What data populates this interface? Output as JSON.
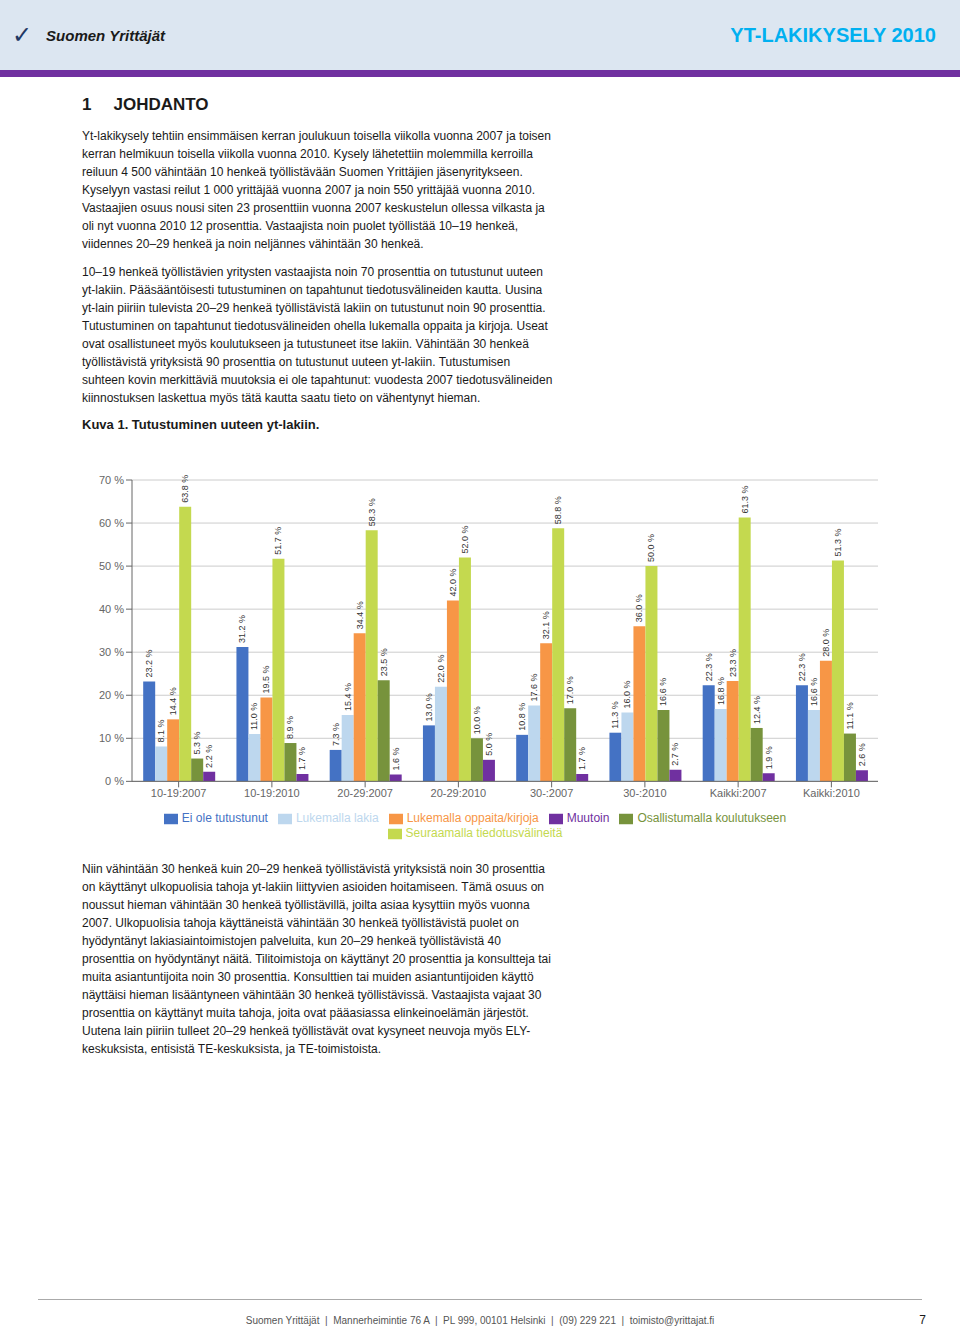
{
  "chart_data": {
    "type": "bar",
    "title": "Kuva 1. Tutustuminen uuteen yt-lakiin.",
    "categories": [
      "10-19:2007",
      "10-19:2010",
      "20-29:2007",
      "20-29:2010",
      "30-:2007",
      "30-:2010",
      "Kaikki:2007",
      "Kaikki:2010"
    ],
    "series": [
      {
        "name": "Ei ole tutustunut",
        "color": "#4472c4",
        "values": [
          23.2,
          31.2,
          7.3,
          13.0,
          10.8,
          11.3,
          22.3,
          22.3
        ],
        "value_labels": [
          "23.2 %",
          "31.2 %",
          "7.3 %",
          "13.0 %",
          "10.8 %",
          "11.3 %",
          "22.3 %",
          "22.3 %"
        ]
      },
      {
        "name": "Lukemalla lakia",
        "color": "#bdd7ee",
        "values": [
          8.1,
          11.0,
          15.4,
          22.0,
          17.6,
          16.0,
          16.8,
          16.6
        ],
        "value_labels": [
          "8.1 %",
          "11.0 %",
          "15.4 %",
          "22.0 %",
          "17.6 %",
          "16.0 %",
          "16.8 %",
          "16.6 %"
        ]
      },
      {
        "name": "Lukemalla oppaita/kirjoja",
        "color": "#f79646",
        "values": [
          14.4,
          19.5,
          34.4,
          42.0,
          32.1,
          36.0,
          23.3,
          28.0
        ],
        "value_labels": [
          "14.4 %",
          "19.5 %",
          "34.4 %",
          "42.0 %",
          "32.1 %",
          "36.0 %",
          "23.3 %",
          "28.0 %"
        ]
      },
      {
        "name": "Seuraamalla tiedotusvälineitä",
        "color": "#c4d94f",
        "values": [
          63.8,
          51.7,
          58.3,
          52.0,
          58.8,
          50.0,
          61.3,
          51.3
        ],
        "value_labels": [
          "63.8 %",
          "51.7 %",
          "58.3 %",
          "52.0 %",
          "58.8 %",
          "50.0 %",
          "61.3 %",
          "51.3 %"
        ]
      },
      {
        "name": "Osallistumalla koulutukseen",
        "color": "#77933c",
        "values": [
          5.3,
          8.9,
          23.5,
          10.0,
          17.0,
          16.6,
          12.4,
          11.1
        ],
        "value_labels": [
          "5.3 %",
          "8.9 %",
          "23.5 %",
          "10.0 %",
          "17.0 %",
          "16.6 %",
          "12.4 %",
          "11.1 %"
        ]
      },
      {
        "name": "Muutoin",
        "color": "#7030a0",
        "values": [
          2.2,
          1.7,
          1.6,
          5.0,
          1.7,
          2.7,
          1.9,
          2.6
        ],
        "value_labels": [
          "2.2 %",
          "1.7 %",
          "1.6 %",
          "5.0 %",
          "1.7 %",
          "2.7 %",
          "1.9 %",
          "2.6 %"
        ]
      }
    ],
    "ylim": [
      0,
      70
    ],
    "yticks": [
      {
        "value": 0,
        "label": "0 %"
      },
      {
        "value": 10,
        "label": "10 %"
      },
      {
        "value": 20,
        "label": "20 %"
      },
      {
        "value": 30,
        "label": "30 %"
      },
      {
        "value": 40,
        "label": "40 %"
      },
      {
        "value": 50,
        "label": "50 %"
      },
      {
        "value": 60,
        "label": "60 %"
      },
      {
        "value": 70,
        "label": "70 %"
      }
    ],
    "grid": true,
    "data_labels": true,
    "legend": "bottom",
    "annotations": [
      "✓",
      "Suomen Yrittäjät",
      "YT-LAKIKYSELY 2010",
      "1",
      "JOHDANTO",
      "Yt-lakikysely tehtiin ensimmäisen kerran joulukuun toisella viikolla vuonna 2007 ja toisen\nkerran helmikuun toisella viikolla vuonna 2010. Kysely lähetettiin molemmilla kerroilla\nreiluun 4 500 vähintään 10 henkeä työllistävään Suomen Yrittäjien jäsenyritykseen.\nKyselyyn vastasi reilut 1 000 yrittäjää vuonna 2007 ja noin 550 yrittäjää vuonna 2010.\nVastaajien osuus nousi siten 23 prosenttiin vuonna 2007 keskustelun ollessa vilkasta ja\noli nyt vuonna 2010 12 prosenttia. Vastaajista noin puolet työllistää 10–19 henkeä,\nviidennes 20–29 henkeä ja noin neljännes vähintään 30 henkeä.",
      "10–19 henkeä työllistävien yritysten vastaajista noin 70 prosenttia on tutustunut uuteen\nyt-lakiin. Pääsääntöisesti tutustuminen on tapahtunut tiedotusvälineiden kautta. Uusina\nyt-lain piiriin tulevista 20–29 henkeä työllistävistä lakiin on tutustunut noin 90 prosenttia.\nTutustuminen on tapahtunut tiedotusvälineiden ohella lukemalla oppaita ja kirjoja. Useat\novat osallistuneet myös koulutukseen ja tutustuneet itse lakiin. Vähintään 30 henkeä\ntyöllistävistä yrityksistä 90 prosenttia on tutustunut uuteen yt-lakiin. Tutustumisen\nsuhteen kovin merkittäviä muutoksia ei ole tapahtunut: vuodesta 2007 tiedotusvälineiden\nkiinnostuksen laskettua myös tätä kautta saatu tieto on vähentynyt hieman.",
      "Niin vähintään 30 henkeä kuin 20–29 henkeä työllistävistä yrityksistä noin 30 prosenttia\non käyttänyt ulkopuolisia tahoja yt-lakiin liittyvien asioiden hoitamiseen. Tämä osuus on\nnoussut hieman vähintään 30 henkeä työllistävillä, joilta asiaa kysyttiin myös vuonna\n2007. Ulkopuolisia tahoja käyttäneistä vähintään 30 henkeä työllistävistä puolet on\nhyödyntänyt lakiasiaintoimistojen palveluita, kun 20–29 henkeä työllistävistä 40\nprosenttia on hyödyntänyt näitä. Tilitoimistoja on käyttänyt 20 prosenttia ja konsultteja tai\nmuita asiantuntijoita noin 30 prosenttia. Konsulttien tai muiden asiantuntijoiden käyttö\nnäyttäisi hieman lisääntyneen vähintään 30 henkeä työllistävissä. Vastaajista vajaat 30\nprosenttia on käyttänyt muita tahoja, joita ovat pääasiassa elinkeinoelämän järjestöt.\nUutena lain piiriin tulleet 20–29 henkeä työllistävät ovat kysyneet neuvoja myös ELY-\nkeskuksista, entisistä TE-keskuksista, ja TE-toimistoista.",
      "Suomen Yrittäjät  |  Mannerheimintie 76 A  |  PL 999, 00101 Helsinki  |  (09) 229 221  |  toimisto@yrittajat.fi",
      "7"
    ]
  }
}
